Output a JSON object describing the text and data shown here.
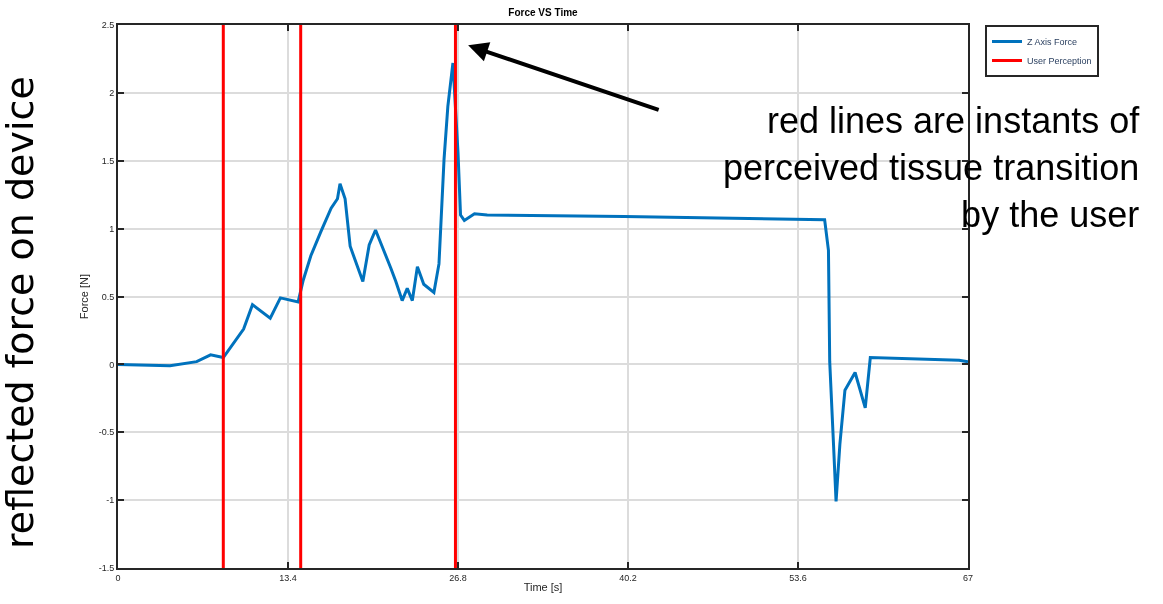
{
  "chart_data": {
    "type": "line",
    "title": "Force VS Time",
    "xlabel": "Time [s]",
    "ylabel": "Force [N]",
    "series": [
      {
        "name": "Z Axis Force",
        "color": "#0072bd",
        "x": [
          0,
          4.1,
          6.2,
          7.3,
          8.3,
          9.9,
          10.6,
          12.0,
          12.8,
          14.2,
          14.6,
          15.2,
          16.0,
          16.8,
          17.3,
          17.5,
          17.9,
          18.3,
          19.3,
          19.8,
          20.3,
          20.9,
          21.5,
          21.9,
          22.4,
          22.8,
          23.2,
          23.6,
          24.1,
          24.9,
          25.3,
          25.7,
          26.0,
          26.4,
          26.8,
          27.0,
          27.3,
          28.1,
          29.1,
          39.9,
          55.7,
          56.0,
          56.1,
          56.4,
          56.6,
          56.9,
          57.3,
          58.1,
          58.9,
          59.3,
          66.3,
          67
        ],
        "values": [
          0,
          -0.01,
          0.02,
          0.07,
          0.05,
          0.26,
          0.44,
          0.34,
          0.49,
          0.46,
          0.62,
          0.8,
          0.98,
          1.15,
          1.22,
          1.33,
          1.22,
          0.87,
          0.61,
          0.88,
          0.99,
          0.85,
          0.71,
          0.61,
          0.47,
          0.56,
          0.47,
          0.72,
          0.59,
          0.53,
          0.74,
          1.51,
          1.9,
          2.22,
          1.56,
          1.1,
          1.06,
          1.11,
          1.1,
          1.09,
          1.065,
          0.84,
          0.02,
          -0.59,
          -1.01,
          -0.59,
          -0.19,
          -0.06,
          -0.32,
          0.05,
          0.03,
          0.02
        ]
      },
      {
        "name": "User Perception",
        "color": "#ff0000",
        "x": [
          8.3,
          8.3,
          null,
          14.4,
          14.4,
          null,
          26.6,
          26.6
        ],
        "values": [
          -1.5,
          2.5,
          null,
          -1.5,
          2.5,
          null,
          -1.5,
          2.5
        ]
      }
    ],
    "annotations": [
      "red lines are instants of perceived tissue transition by the user",
      "reflected force on device"
    ],
    "xlim": [
      0,
      67
    ],
    "xticks": [
      0,
      13.4,
      26.8,
      40.2,
      53.6,
      67
    ],
    "ylim": [
      -1.5,
      2.5
    ],
    "yticks": [
      -1.5,
      -1,
      -0.5,
      0,
      0.5,
      1,
      1.5,
      2,
      2.5
    ],
    "grid": true,
    "legend": "top right"
  }
}
